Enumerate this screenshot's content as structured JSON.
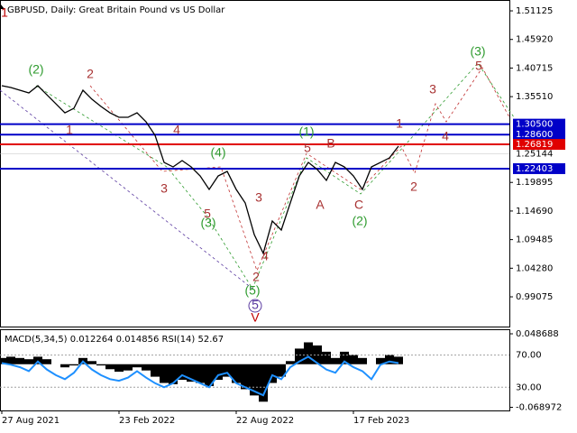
{
  "chart_data": {
    "type": "line",
    "title": "GBPUSD, Daily:  Great Britain Pound vs US Dollar",
    "categories": [
      "27 Aug 2021",
      null,
      null,
      null,
      null,
      null,
      null,
      null,
      null,
      null,
      null,
      null,
      null,
      "23 Feb 2022",
      null,
      null,
      null,
      null,
      null,
      null,
      null,
      null,
      null,
      null,
      null,
      null,
      "22 Aug 2022",
      null,
      null,
      null,
      null,
      null,
      null,
      null,
      null,
      null,
      null,
      null,
      null,
      "17 Feb 2023",
      null,
      null,
      null,
      null,
      null
    ],
    "series": [
      {
        "name": "GBPUSD",
        "color": "#000000",
        "values": [
          1.375,
          1.3717,
          1.3668,
          1.3618,
          1.375,
          1.3585,
          1.3421,
          1.3257,
          1.3339,
          1.3668,
          1.3503,
          1.3372,
          1.3257,
          1.3175,
          1.3175,
          1.3257,
          1.3093,
          1.2847,
          1.2354,
          1.2272,
          1.2387,
          1.2272,
          1.2108,
          1.1862,
          1.2108,
          1.219,
          1.1862,
          1.1616,
          1.1041,
          1.07,
          1.1287,
          1.1123,
          1.1616,
          1.2108,
          1.2354,
          1.2223,
          1.2026,
          1.2354,
          1.2272,
          1.2108,
          1.1862,
          1.2272,
          1.2354,
          1.2436,
          1.265
        ]
      }
    ],
    "ylim": [
      0.9366,
      1.531
    ],
    "yticks": [
      {
        "value": 1.51125,
        "label": "1.51125"
      },
      {
        "value": 1.4592,
        "label": "1.45920"
      },
      {
        "value": 1.40715,
        "label": "1.40715"
      },
      {
        "value": 1.3551,
        "label": "1.35510"
      },
      {
        "value": 1.19895,
        "label": "1.19895"
      },
      {
        "value": 1.1469,
        "label": "1.14690"
      },
      {
        "value": 1.09485,
        "label": "1.09485"
      },
      {
        "value": 1.0428,
        "label": "1.04280"
      },
      {
        "value": 0.99075,
        "label": "0.99075"
      }
    ],
    "last_price": {
      "value": 1.25144,
      "label": "1.25144"
    },
    "levels": [
      {
        "value": 1.305,
        "label": "1.30500",
        "color": "#0000c8"
      },
      {
        "value": 1.286,
        "label": "1.28600",
        "color": "#0000c8"
      },
      {
        "value": 1.26819,
        "label": "1.26819",
        "color": "#e00000"
      },
      {
        "value": 1.22403,
        "label": "1.22403",
        "color": "#0000c8"
      }
    ],
    "annotations": [
      {
        "text": "1",
        "color": "#c00000"
      },
      {
        "text": "(2)",
        "color": "#2e9b2e"
      },
      {
        "text": "2",
        "color": "#a83232"
      },
      {
        "text": "1",
        "color": "#a83232"
      },
      {
        "text": "4",
        "color": "#a83232"
      },
      {
        "text": "3",
        "color": "#a83232"
      },
      {
        "text": "(4)",
        "color": "#2e9b2e"
      },
      {
        "text": "5",
        "color": "#a83232"
      },
      {
        "text": "(3)",
        "color": "#2e9b2e"
      },
      {
        "text": "3",
        "color": "#a83232"
      },
      {
        "text": "4",
        "color": "#a83232"
      },
      {
        "text": "2",
        "color": "#a83232"
      },
      {
        "text": "(5)",
        "color": "#2e9b2e"
      },
      {
        "text": "5",
        "color": "#5a3aa0"
      },
      {
        "text": "V",
        "color": "#c00000"
      },
      {
        "text": "(1)",
        "color": "#2e9b2e"
      },
      {
        "text": "5",
        "color": "#a83232"
      },
      {
        "text": "B",
        "color": "#a83232"
      },
      {
        "text": "A",
        "color": "#a83232"
      },
      {
        "text": "C",
        "color": "#a83232"
      },
      {
        "text": "(2)",
        "color": "#2e9b2e"
      },
      {
        "text": "1",
        "color": "#a83232"
      },
      {
        "text": "2",
        "color": "#a83232"
      },
      {
        "text": "3",
        "color": "#a83232"
      },
      {
        "text": "4",
        "color": "#a83232"
      },
      {
        "text": "5",
        "color": "#a83232"
      },
      {
        "text": "(3)",
        "color": "#2e9b2e"
      }
    ],
    "indicator": {
      "label": "MACD(5,34,5) 0.012264 0.014856 RSI(14) 52.67",
      "macd": [
        0.01,
        0.012,
        0.01,
        0.008,
        0.012,
        0.008,
        0.0,
        -0.005,
        -0.002,
        0.01,
        0.005,
        -0.002,
        -0.008,
        -0.012,
        -0.01,
        -0.005,
        -0.01,
        -0.02,
        -0.03,
        -0.032,
        -0.025,
        -0.028,
        -0.03,
        -0.035,
        -0.025,
        -0.02,
        -0.03,
        -0.04,
        -0.05,
        -0.06,
        -0.03,
        -0.02,
        0.005,
        0.025,
        0.035,
        0.03,
        0.02,
        0.01,
        0.02,
        0.015,
        0.01,
        0.0,
        0.01,
        0.015,
        0.012
      ],
      "macd_lim": [
        -0.074,
        0.0545
      ],
      "macd_ticks": [
        {
          "value": 0.048688,
          "label": "0.048688"
        },
        {
          "value": -0.068972,
          "label": "-0.068972"
        }
      ],
      "rsi": [
        60,
        58,
        55,
        50,
        62,
        52,
        45,
        40,
        48,
        62,
        52,
        45,
        40,
        38,
        42,
        50,
        42,
        35,
        30,
        35,
        45,
        40,
        35,
        30,
        45,
        48,
        35,
        30,
        25,
        20,
        45,
        40,
        55,
        62,
        68,
        60,
        52,
        48,
        62,
        55,
        50,
        40,
        58,
        62,
        60
      ],
      "rsi_color": "#1e90ff",
      "rsi_lim": [
        1.1,
        101
      ],
      "rsi_ticks": [
        {
          "value": 70,
          "label": "70.00"
        },
        {
          "value": 30,
          "label": "30.00"
        }
      ]
    }
  }
}
